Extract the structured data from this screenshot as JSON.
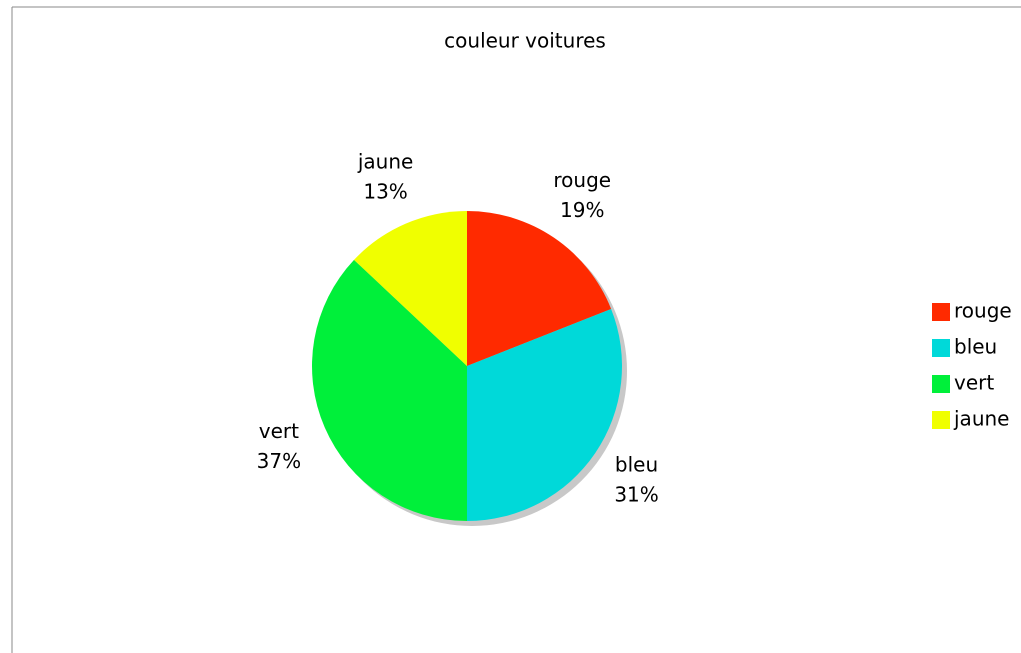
{
  "chart_data": {
    "type": "pie",
    "title": "couleur voitures",
    "categories": [
      "rouge",
      "bleu",
      "vert",
      "jaune"
    ],
    "values": [
      19,
      31,
      37,
      13
    ],
    "value_labels": [
      "19%",
      "31%",
      "37%",
      "13%"
    ],
    "colors": [
      "#ff2a00",
      "#00d9d9",
      "#00f03a",
      "#f0ff00"
    ],
    "legend": "right"
  }
}
